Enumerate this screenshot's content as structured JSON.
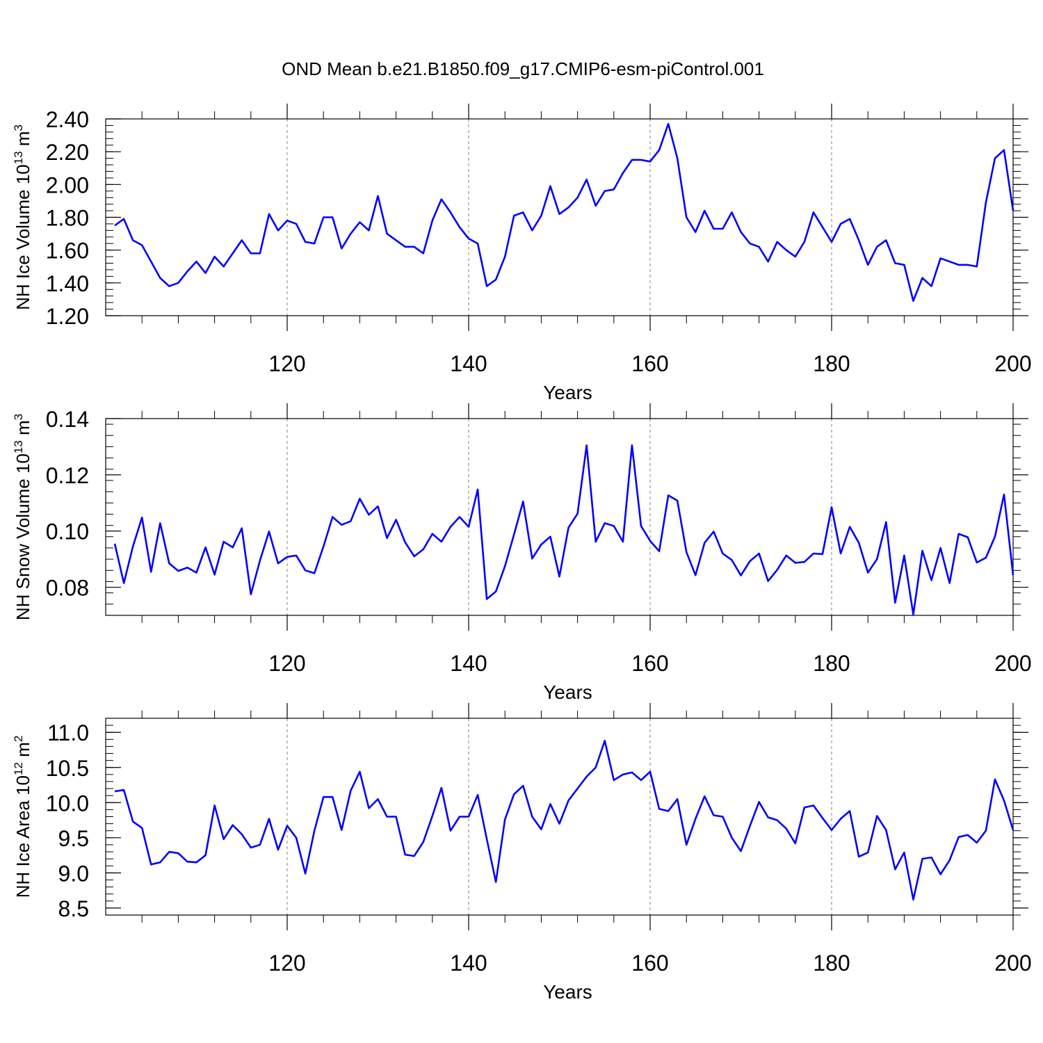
{
  "figure_title": "OND Mean b.e21.B1850.f09_g17.CMIP6-esm-piControl.001",
  "colors": {
    "line": "#0000ff",
    "axis": "#000000",
    "grid": "#808080",
    "background": "#ffffff"
  },
  "chart_data": [
    {
      "type": "line",
      "ylabel_main": "NH Ice Volume 10",
      "ylabel_exp": "13",
      "ylabel_unit": " m",
      "ylabel_unit_exp": "3",
      "xlabel": "Years",
      "xlim": [
        101,
        200
      ],
      "ylim": [
        1.2,
        2.4
      ],
      "xticks": [
        120,
        140,
        160,
        180,
        200
      ],
      "xtick_labels": [
        "120",
        "140",
        "160",
        "180",
        "200"
      ],
      "yticks": [
        1.2,
        1.4,
        1.6,
        1.8,
        2.0,
        2.2,
        2.4
      ],
      "ytick_labels": [
        "1.20",
        "1.40",
        "1.60",
        "1.80",
        "2.00",
        "2.20",
        "2.40"
      ],
      "grid_x": [
        120,
        140,
        160,
        180
      ],
      "x_start": 101,
      "values": [
        1.75,
        1.79,
        1.66,
        1.63,
        1.53,
        1.43,
        1.38,
        1.4,
        1.47,
        1.53,
        1.46,
        1.56,
        1.5,
        1.58,
        1.66,
        1.58,
        1.58,
        1.82,
        1.72,
        1.78,
        1.76,
        1.65,
        1.64,
        1.8,
        1.8,
        1.61,
        1.7,
        1.77,
        1.72,
        1.93,
        1.7,
        1.66,
        1.62,
        1.62,
        1.58,
        1.78,
        1.91,
        1.83,
        1.74,
        1.67,
        1.64,
        1.38,
        1.42,
        1.56,
        1.81,
        1.83,
        1.72,
        1.81,
        1.99,
        1.82,
        1.86,
        1.92,
        2.03,
        1.87,
        1.96,
        1.97,
        2.07,
        2.15,
        2.15,
        2.14,
        2.21,
        2.37,
        2.16,
        1.8,
        1.71,
        1.84,
        1.73,
        1.73,
        1.83,
        1.71,
        1.64,
        1.62,
        1.53,
        1.65,
        1.6,
        1.56,
        1.65,
        1.83,
        1.74,
        1.65,
        1.76,
        1.79,
        1.66,
        1.51,
        1.62,
        1.66,
        1.52,
        1.51,
        1.29,
        1.43,
        1.38,
        1.55,
        1.53,
        1.51,
        1.51,
        1.5,
        1.89,
        2.16,
        2.21,
        1.84
      ]
    },
    {
      "type": "line",
      "ylabel_main": "NH Snow Volume 10",
      "ylabel_exp": "13",
      "ylabel_unit": " m",
      "ylabel_unit_exp": "3",
      "xlabel": "Years",
      "xlim": [
        101,
        200
      ],
      "ylim": [
        0.07,
        0.14
      ],
      "xticks": [
        120,
        140,
        160,
        180,
        200
      ],
      "xtick_labels": [
        "120",
        "140",
        "160",
        "180",
        "200"
      ],
      "yticks": [
        0.08,
        0.1,
        0.12,
        0.14
      ],
      "ytick_labels": [
        "0.08",
        "0.10",
        "0.12",
        "0.14"
      ],
      "grid_x": [
        120,
        140,
        160,
        180
      ],
      "x_start": 101,
      "values": [
        0.0955,
        0.0815,
        0.0945,
        0.1048,
        0.0855,
        0.1028,
        0.0885,
        0.0858,
        0.087,
        0.0852,
        0.0942,
        0.0845,
        0.0962,
        0.0942,
        0.101,
        0.0775,
        0.0895,
        0.0998,
        0.0885,
        0.0908,
        0.0913,
        0.086,
        0.085,
        0.0945,
        0.105,
        0.1022,
        0.1035,
        0.1115,
        0.1058,
        0.1088,
        0.0975,
        0.104,
        0.096,
        0.091,
        0.0935,
        0.099,
        0.0962,
        0.1015,
        0.105,
        0.1015,
        0.1148,
        0.0758,
        0.0785,
        0.0875,
        0.0988,
        0.1105,
        0.0902,
        0.0952,
        0.098,
        0.0838,
        0.1012,
        0.1062,
        0.1305,
        0.0962,
        0.1028,
        0.1018,
        0.0962,
        0.1305,
        0.1018,
        0.0965,
        0.0928,
        0.1127,
        0.1108,
        0.0925,
        0.0843,
        0.0958,
        0.0998,
        0.092,
        0.0897,
        0.0842,
        0.0893,
        0.092,
        0.0822,
        0.0862,
        0.0913,
        0.0887,
        0.089,
        0.092,
        0.0918,
        0.1085,
        0.092,
        0.1015,
        0.0958,
        0.0852,
        0.09,
        0.1032,
        0.0745,
        0.0913,
        0.0703,
        0.093,
        0.0825,
        0.094,
        0.0815,
        0.099,
        0.0978,
        0.0888,
        0.0905,
        0.098,
        0.113,
        0.0843
      ]
    },
    {
      "type": "line",
      "ylabel_main": "NH Ice Area 10",
      "ylabel_exp": "12",
      "ylabel_unit": " m",
      "ylabel_unit_exp": "2",
      "xlabel": "Years",
      "xlim": [
        101,
        200
      ],
      "ylim": [
        8.4,
        11.2
      ],
      "xticks": [
        120,
        140,
        160,
        180,
        200
      ],
      "xtick_labels": [
        "120",
        "140",
        "160",
        "180",
        "200"
      ],
      "yticks": [
        8.5,
        9.0,
        9.5,
        10.0,
        10.5,
        11.0
      ],
      "ytick_labels": [
        "8.5",
        "9.0",
        "9.5",
        "10.0",
        "10.5",
        "11.0"
      ],
      "grid_x": [
        120,
        140,
        160,
        180
      ],
      "x_start": 101,
      "values": [
        10.16,
        10.18,
        9.73,
        9.64,
        9.12,
        9.15,
        9.3,
        9.28,
        9.16,
        9.15,
        9.25,
        9.96,
        9.48,
        9.68,
        9.55,
        9.36,
        9.4,
        9.77,
        9.33,
        9.67,
        9.5,
        8.99,
        9.6,
        10.08,
        10.08,
        9.61,
        10.17,
        10.44,
        9.92,
        10.05,
        9.8,
        9.8,
        9.26,
        9.24,
        9.44,
        9.81,
        10.21,
        9.6,
        9.8,
        9.8,
        10.11,
        9.48,
        8.87,
        9.76,
        10.12,
        10.24,
        9.8,
        9.62,
        9.98,
        9.7,
        10.03,
        10.2,
        10.37,
        10.5,
        10.88,
        10.32,
        10.4,
        10.43,
        10.32,
        10.44,
        9.91,
        9.88,
        10.05,
        9.4,
        9.77,
        10.09,
        9.82,
        9.8,
        9.5,
        9.31,
        9.67,
        10.01,
        9.79,
        9.75,
        9.63,
        9.42,
        9.93,
        9.96,
        9.78,
        9.61,
        9.77,
        9.88,
        9.23,
        9.29,
        9.81,
        9.61,
        9.05,
        9.29,
        8.62,
        9.2,
        9.22,
        8.98,
        9.18,
        9.51,
        9.54,
        9.43,
        9.6,
        10.33,
        10.03,
        9.61
      ]
    }
  ]
}
